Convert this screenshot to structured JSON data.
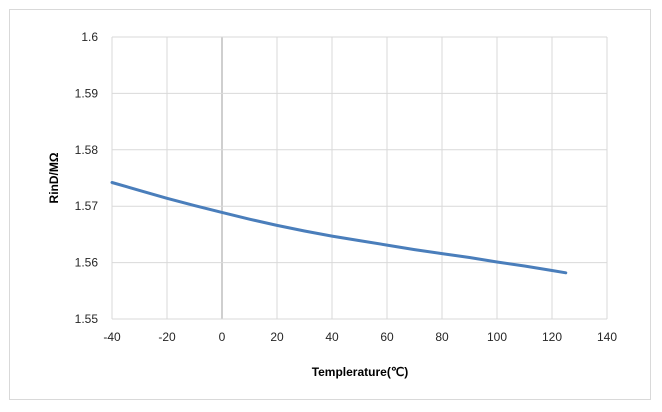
{
  "chart_data": {
    "type": "line",
    "xlabel": "Templerature(℃)",
    "ylabel": "RinD/MΩ",
    "xlim": [
      -40,
      140
    ],
    "ylim": [
      1.55,
      1.6
    ],
    "xticks": [
      "-40",
      "-20",
      "0",
      "20",
      "40",
      "60",
      "80",
      "100",
      "120",
      "140"
    ],
    "yticks": [
      "1.55",
      "1.56",
      "1.57",
      "1.58",
      "1.59",
      "1.6"
    ],
    "grid": true,
    "legend": "none",
    "series": [
      {
        "color": "#4a7ebb",
        "x": [
          -40,
          -30,
          -20,
          -10,
          0,
          10,
          20,
          30,
          40,
          50,
          60,
          70,
          80,
          90,
          100,
          110,
          120,
          125
        ],
        "y": [
          1.5742,
          1.5728,
          1.5714,
          1.5701,
          1.5689,
          1.5677,
          1.5666,
          1.5656,
          1.5647,
          1.5639,
          1.5631,
          1.5623,
          1.5616,
          1.5609,
          1.5601,
          1.5594,
          1.5586,
          1.5582
        ]
      }
    ]
  },
  "colors": {
    "grid": "#d9d9d9",
    "zero_line": "#bfbfbf",
    "series": "#4a7ebb"
  }
}
